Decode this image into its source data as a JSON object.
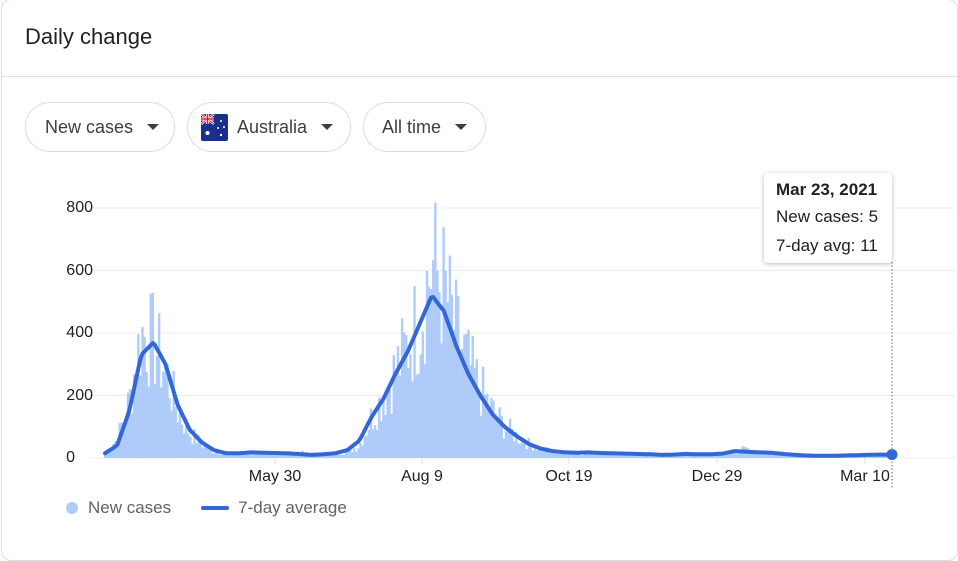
{
  "header": {
    "title": "Daily change"
  },
  "filters": {
    "metric": {
      "label": "New cases",
      "icon": "caret-down-icon"
    },
    "location": {
      "label": "Australia",
      "icon": "australia-flag-icon"
    },
    "range": {
      "label": "All time",
      "icon": "caret-down-icon"
    }
  },
  "tooltip": {
    "date": "Mar 23, 2021",
    "new_cases": "New cases: 5",
    "avg": "7-day avg: 11"
  },
  "legend": {
    "new_cases": "New cases",
    "avg": "7-day average"
  },
  "colors": {
    "bars": "#aecbfa",
    "line": "#3367d6",
    "grid": "#ececec",
    "text": "#202124",
    "legend_text": "#5f6368"
  },
  "chart_data": {
    "type": "bar",
    "title": "Daily change",
    "xlabel": "",
    "ylabel": "New cases",
    "ylim": [
      0,
      800
    ],
    "yticks": [
      0,
      200,
      400,
      600,
      800
    ],
    "xticks": [
      "May 30",
      "Aug 9",
      "Oct 19",
      "Dec 29",
      "Mar 10"
    ],
    "x_start": "Mar 9, 2020",
    "x_end": "Mar 23, 2021",
    "grid": true,
    "legend_position": "bottom-left",
    "series": [
      {
        "name": "New cases",
        "type": "bar",
        "weekly_approx": [
          20,
          60,
          180,
          400,
          370,
          280,
          150,
          80,
          45,
          20,
          15,
          12,
          15,
          15,
          20,
          15,
          18,
          12,
          10,
          15,
          20,
          40,
          130,
          200,
          280,
          360,
          450,
          620,
          540,
          400,
          300,
          220,
          150,
          100,
          70,
          45,
          30,
          20,
          18,
          15,
          15,
          20,
          15,
          15,
          10,
          10,
          8,
          10,
          12,
          15,
          10,
          15,
          20,
          30,
          25,
          20,
          15,
          10,
          8,
          8,
          8,
          8,
          10,
          10,
          12,
          5
        ]
      },
      {
        "name": "7-day average",
        "type": "line",
        "weekly": [
          15,
          40,
          150,
          330,
          370,
          300,
          170,
          90,
          50,
          25,
          15,
          15,
          18,
          17,
          16,
          15,
          13,
          10,
          12,
          15,
          25,
          55,
          130,
          190,
          270,
          340,
          430,
          520,
          470,
          360,
          270,
          200,
          140,
          100,
          70,
          45,
          30,
          22,
          18,
          17,
          18,
          16,
          15,
          14,
          13,
          12,
          10,
          11,
          13,
          12,
          12,
          14,
          22,
          20,
          18,
          17,
          13,
          10,
          8,
          7,
          7,
          8,
          9,
          10,
          11,
          11
        ]
      }
    ]
  }
}
